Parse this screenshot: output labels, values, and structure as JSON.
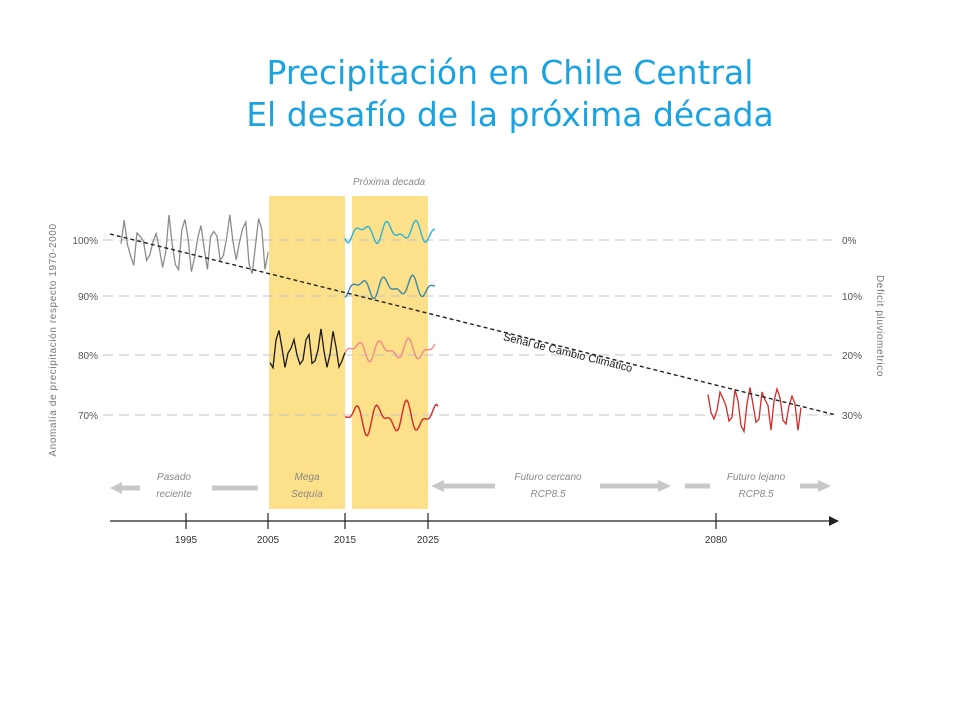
{
  "title": {
    "line1": "Precipitación en Chile Central",
    "line2": "El desafío de la próxima década"
  },
  "left_axis": {
    "label": "Anomalía de precipitación respecto 1970-2000",
    "ticks": [
      "100%",
      "90%",
      "80%",
      "70%"
    ]
  },
  "right_axis": {
    "label": "Deficit pluviometrico",
    "ticks": [
      "0%",
      "10%",
      "20%",
      "30%"
    ]
  },
  "next_decade_label": "Próxima decada",
  "climate_signal_label": "Señal de Cambio Climático",
  "periods": {
    "recent_past": [
      "Pasado",
      "reciente"
    ],
    "mega_drought": [
      "Mega",
      "Sequía"
    ],
    "near_future": [
      "Futuro cercano",
      "RCP8.5"
    ],
    "far_future": [
      "Futuro lejano",
      "RCP8.5"
    ]
  },
  "years": [
    "1995",
    "2005",
    "2015",
    "2025",
    "2080"
  ],
  "colors": {
    "title": "#1aa3e0",
    "highlight": "#fde08a",
    "past_series": "#8c8c8c",
    "drought_series": "#1a1a1a",
    "scenario_0": "#2bb5d6",
    "scenario_10": "#3a8aa8",
    "scenario_20": "#f08a8a",
    "scenario_30": "#d42a2a",
    "far_future_series": "#d42a2a",
    "arrows": "#c8c8c8"
  }
}
